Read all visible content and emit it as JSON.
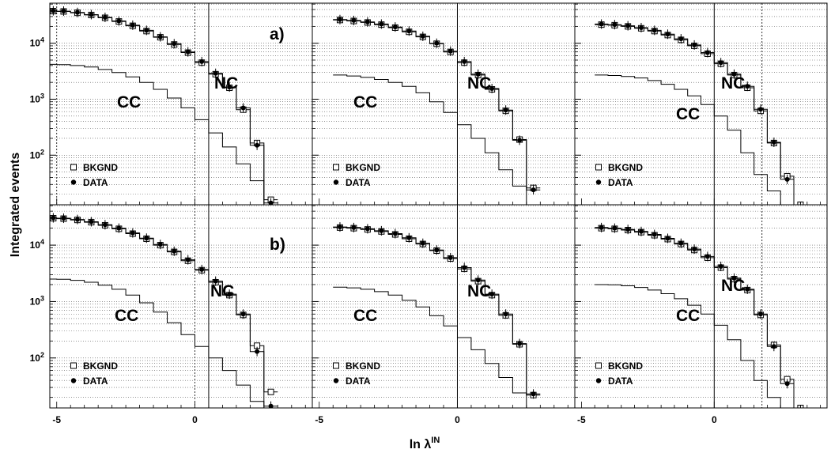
{
  "figure": {
    "ylabel": "Integrated events",
    "xlabel_main": "ln λ",
    "xlabel_sup": "IN"
  },
  "chart_data": [
    {
      "type": "line",
      "row": "a",
      "col": 0,
      "row_label": "a)",
      "x_bin_edges": [
        -5.25,
        -5.0,
        -4.5,
        -4.0,
        -3.5,
        -3.0,
        -2.5,
        -2.0,
        -1.5,
        -1.0,
        -0.5,
        0.0,
        0.5,
        1.0,
        1.5,
        2.0,
        2.5,
        3.0,
        3.5,
        4.0,
        4.25
      ],
      "xlim": [
        -5.25,
        4.25
      ],
      "ylim": [
        13,
        52000
      ],
      "yscale": "log",
      "x_ticks": [
        -5,
        0
      ],
      "y_ticks": [
        100,
        1000,
        10000
      ],
      "y_tick_labels": [
        "10^2",
        "10^3",
        "10^4"
      ],
      "vlines": [
        {
          "x": -5,
          "style": "dotted"
        },
        {
          "x": 0,
          "style": "dotted"
        },
        {
          "x": 0.5,
          "style": "solid"
        }
      ],
      "series": [
        {
          "name": "BKGND",
          "values": [
            37500,
            37000,
            35000,
            32000,
            28500,
            24500,
            20500,
            16500,
            12800,
            9500,
            6800,
            4500,
            2800,
            1600,
            650,
            165,
            16,
            null,
            null,
            null
          ]
        },
        {
          "name": "DATA",
          "values": [
            38000,
            37500,
            35500,
            32500,
            29000,
            25000,
            21000,
            17000,
            13000,
            9800,
            7000,
            4700,
            2900,
            1650,
            700,
            150,
            14,
            null,
            null,
            null
          ]
        },
        {
          "name": "",
          "values": [
            4200,
            4150,
            4000,
            3750,
            3400,
            3000,
            2500,
            2000,
            1500,
            1050,
            700,
            430,
            250,
            140,
            70,
            35,
            13,
            null,
            null,
            null
          ]
        }
      ],
      "legend": [
        "BKGND",
        "DATA"
      ],
      "annotations": [
        "NC",
        "CC"
      ],
      "grid": true
    },
    {
      "type": "line",
      "row": "a",
      "col": 1,
      "row_label": "",
      "x_bin_edges": [
        -5.25,
        -5.0,
        -4.5,
        -4.0,
        -3.5,
        -3.0,
        -2.5,
        -2.0,
        -1.5,
        -1.0,
        -0.5,
        0.0,
        0.5,
        1.0,
        1.5,
        2.0,
        2.5,
        3.0,
        3.5,
        4.0,
        4.25
      ],
      "xlim": [
        -5.25,
        4.25
      ],
      "ylim": [
        13,
        52000
      ],
      "yscale": "log",
      "x_ticks": [
        -5,
        0
      ],
      "y_ticks": [
        100,
        1000,
        10000
      ],
      "y_tick_labels": [
        "10^2",
        "10^3",
        "10^4"
      ],
      "vlines": [
        {
          "x": 0,
          "style": "solid"
        }
      ],
      "series": [
        {
          "name": "BKGND",
          "values": [
            null,
            null,
            26000,
            25000,
            23500,
            21500,
            19000,
            16000,
            13000,
            9800,
            7000,
            4500,
            2700,
            1500,
            620,
            190,
            26,
            null,
            null,
            null
          ]
        },
        {
          "name": "DATA",
          "values": [
            null,
            null,
            26500,
            25500,
            24000,
            22000,
            19500,
            16500,
            13300,
            10000,
            7200,
            4700,
            2800,
            1550,
            640,
            185,
            24,
            null,
            null,
            null
          ]
        },
        {
          "name": "",
          "values": [
            null,
            null,
            2700,
            2600,
            2450,
            2250,
            2000,
            1700,
            1300,
            900,
            580,
            350,
            200,
            110,
            55,
            28,
            13,
            null,
            null,
            null
          ]
        }
      ],
      "legend": [
        "BKGND",
        "DATA"
      ],
      "annotations": [
        "NC",
        "CC"
      ],
      "grid": true
    },
    {
      "type": "line",
      "row": "a",
      "col": 2,
      "row_label": "",
      "x_bin_edges": [
        -5.25,
        -5.0,
        -4.5,
        -4.0,
        -3.5,
        -3.0,
        -2.5,
        -2.0,
        -1.5,
        -1.0,
        -0.5,
        0.0,
        0.5,
        1.0,
        1.5,
        2.0,
        2.5,
        3.0,
        3.5,
        4.0,
        4.25
      ],
      "xlim": [
        -5.25,
        4.25
      ],
      "ylim": [
        13,
        52000
      ],
      "yscale": "log",
      "x_ticks": [
        -5,
        0
      ],
      "y_ticks": [
        100,
        1000,
        10000
      ],
      "y_tick_labels": [
        "10^2",
        "10^3",
        "10^4"
      ],
      "vlines": [
        {
          "x": 0,
          "style": "solid"
        },
        {
          "x": 1.8,
          "style": "dotted"
        }
      ],
      "series": [
        {
          "name": "BKGND",
          "values": [
            null,
            null,
            21500,
            21000,
            20000,
            18500,
            16500,
            14000,
            11500,
            9000,
            6500,
            4300,
            2700,
            1600,
            620,
            165,
            42,
            13,
            null,
            null
          ]
        },
        {
          "name": "DATA",
          "values": [
            null,
            null,
            22000,
            21500,
            20500,
            19000,
            17000,
            14500,
            12000,
            9300,
            6800,
            4500,
            2800,
            1700,
            660,
            170,
            37,
            12,
            null,
            null
          ]
        },
        {
          "name": "",
          "values": [
            null,
            null,
            2700,
            2650,
            2550,
            2400,
            2150,
            1850,
            1500,
            1150,
            800,
            500,
            280,
            110,
            45,
            23,
            13,
            null,
            null,
            null
          ]
        }
      ],
      "legend": [
        "BKGND",
        "DATA"
      ],
      "annotations": [
        "NC",
        "CC"
      ],
      "grid": true
    },
    {
      "type": "line",
      "row": "b",
      "col": 0,
      "row_label": "b)",
      "x_bin_edges": [
        -5.25,
        -5.0,
        -4.5,
        -4.0,
        -3.5,
        -3.0,
        -2.5,
        -2.0,
        -1.5,
        -1.0,
        -0.5,
        0.0,
        0.5,
        1.0,
        1.5,
        2.0,
        2.5,
        3.0,
        3.5,
        4.0,
        4.25
      ],
      "xlim": [
        -5.25,
        4.25
      ],
      "ylim": [
        13,
        52000
      ],
      "yscale": "log",
      "x_ticks": [
        -5,
        0
      ],
      "y_ticks": [
        100,
        1000,
        10000
      ],
      "y_tick_labels": [
        "10^2",
        "10^3",
        "10^4"
      ],
      "vlines": [
        {
          "x": 0,
          "style": "dotted"
        },
        {
          "x": 0.5,
          "style": "solid"
        }
      ],
      "series": [
        {
          "name": "BKGND",
          "values": [
            30000,
            29500,
            28000,
            25500,
            22500,
            19500,
            16000,
            13000,
            10000,
            7600,
            5300,
            3600,
            2200,
            1300,
            580,
            165,
            25,
            null,
            null,
            null
          ]
        },
        {
          "name": "DATA",
          "values": [
            30500,
            30000,
            28500,
            26000,
            23000,
            20000,
            16500,
            13300,
            10300,
            7800,
            5500,
            3700,
            2300,
            1350,
            600,
            130,
            14,
            null,
            null,
            null
          ]
        },
        {
          "name": "",
          "values": [
            2500,
            2480,
            2380,
            2200,
            1950,
            1650,
            1300,
            950,
            650,
            420,
            260,
            160,
            100,
            60,
            33,
            17,
            11,
            null,
            null,
            null
          ]
        }
      ],
      "legend": [
        "BKGND",
        "DATA"
      ],
      "annotations": [
        "NC",
        "CC"
      ],
      "grid": true
    },
    {
      "type": "line",
      "row": "b",
      "col": 1,
      "row_label": "",
      "x_bin_edges": [
        -5.25,
        -5.0,
        -4.5,
        -4.0,
        -3.5,
        -3.0,
        -2.5,
        -2.0,
        -1.5,
        -1.0,
        -0.5,
        0.0,
        0.5,
        1.0,
        1.5,
        2.0,
        2.5,
        3.0,
        3.5,
        4.0,
        4.25
      ],
      "xlim": [
        -5.25,
        4.25
      ],
      "ylim": [
        13,
        52000
      ],
      "yscale": "log",
      "x_ticks": [
        -5,
        0
      ],
      "y_ticks": [
        100,
        1000,
        10000
      ],
      "y_tick_labels": [
        "10^2",
        "10^3",
        "10^4"
      ],
      "vlines": [
        {
          "x": 0,
          "style": "solid"
        }
      ],
      "series": [
        {
          "name": "BKGND",
          "values": [
            null,
            null,
            20500,
            20000,
            19000,
            17500,
            15500,
            13000,
            10500,
            8000,
            5800,
            3800,
            2300,
            1300,
            570,
            175,
            22,
            null,
            null,
            null
          ]
        },
        {
          "name": "DATA",
          "values": [
            null,
            null,
            21000,
            20500,
            19500,
            18000,
            16000,
            13500,
            10800,
            8200,
            6000,
            4000,
            2400,
            1350,
            600,
            180,
            23,
            null,
            null,
            null
          ]
        },
        {
          "name": "",
          "values": [
            null,
            null,
            1800,
            1750,
            1650,
            1500,
            1300,
            1050,
            800,
            560,
            370,
            230,
            140,
            80,
            45,
            24,
            12,
            null,
            null,
            null
          ]
        }
      ],
      "legend": [
        "BKGND",
        "DATA"
      ],
      "annotations": [
        "NC",
        "CC"
      ],
      "grid": true
    },
    {
      "type": "line",
      "row": "b",
      "col": 2,
      "row_label": "",
      "x_bin_edges": [
        -5.25,
        -5.0,
        -4.5,
        -4.0,
        -3.5,
        -3.0,
        -2.5,
        -2.0,
        -1.5,
        -1.0,
        -0.5,
        0.0,
        0.5,
        1.0,
        1.5,
        2.0,
        2.5,
        3.0,
        3.5,
        4.0,
        4.25
      ],
      "xlim": [
        -5.25,
        4.25
      ],
      "ylim": [
        13,
        52000
      ],
      "yscale": "log",
      "x_ticks": [
        -5,
        0
      ],
      "y_ticks": [
        100,
        1000,
        10000
      ],
      "y_tick_labels": [
        "10^2",
        "10^3",
        "10^4"
      ],
      "vlines": [
        {
          "x": 0,
          "style": "solid"
        },
        {
          "x": 1.8,
          "style": "dotted"
        }
      ],
      "series": [
        {
          "name": "BKGND",
          "values": [
            null,
            null,
            20000,
            19500,
            18500,
            17000,
            15000,
            12800,
            10500,
            8200,
            6000,
            4000,
            2500,
            1600,
            580,
            170,
            42,
            13,
            null,
            null
          ]
        },
        {
          "name": "DATA",
          "values": [
            null,
            null,
            20500,
            20000,
            19000,
            17500,
            15500,
            13200,
            10800,
            8500,
            6300,
            4200,
            2600,
            1650,
            600,
            160,
            35,
            12,
            null,
            null
          ]
        },
        {
          "name": "",
          "values": [
            null,
            null,
            2000,
            1980,
            1900,
            1780,
            1600,
            1380,
            1120,
            860,
            600,
            380,
            210,
            90,
            40,
            20,
            13,
            null,
            null,
            null
          ]
        }
      ],
      "legend": [
        "BKGND",
        "DATA"
      ],
      "annotations": [
        "NC",
        "CC"
      ],
      "grid": true
    }
  ]
}
